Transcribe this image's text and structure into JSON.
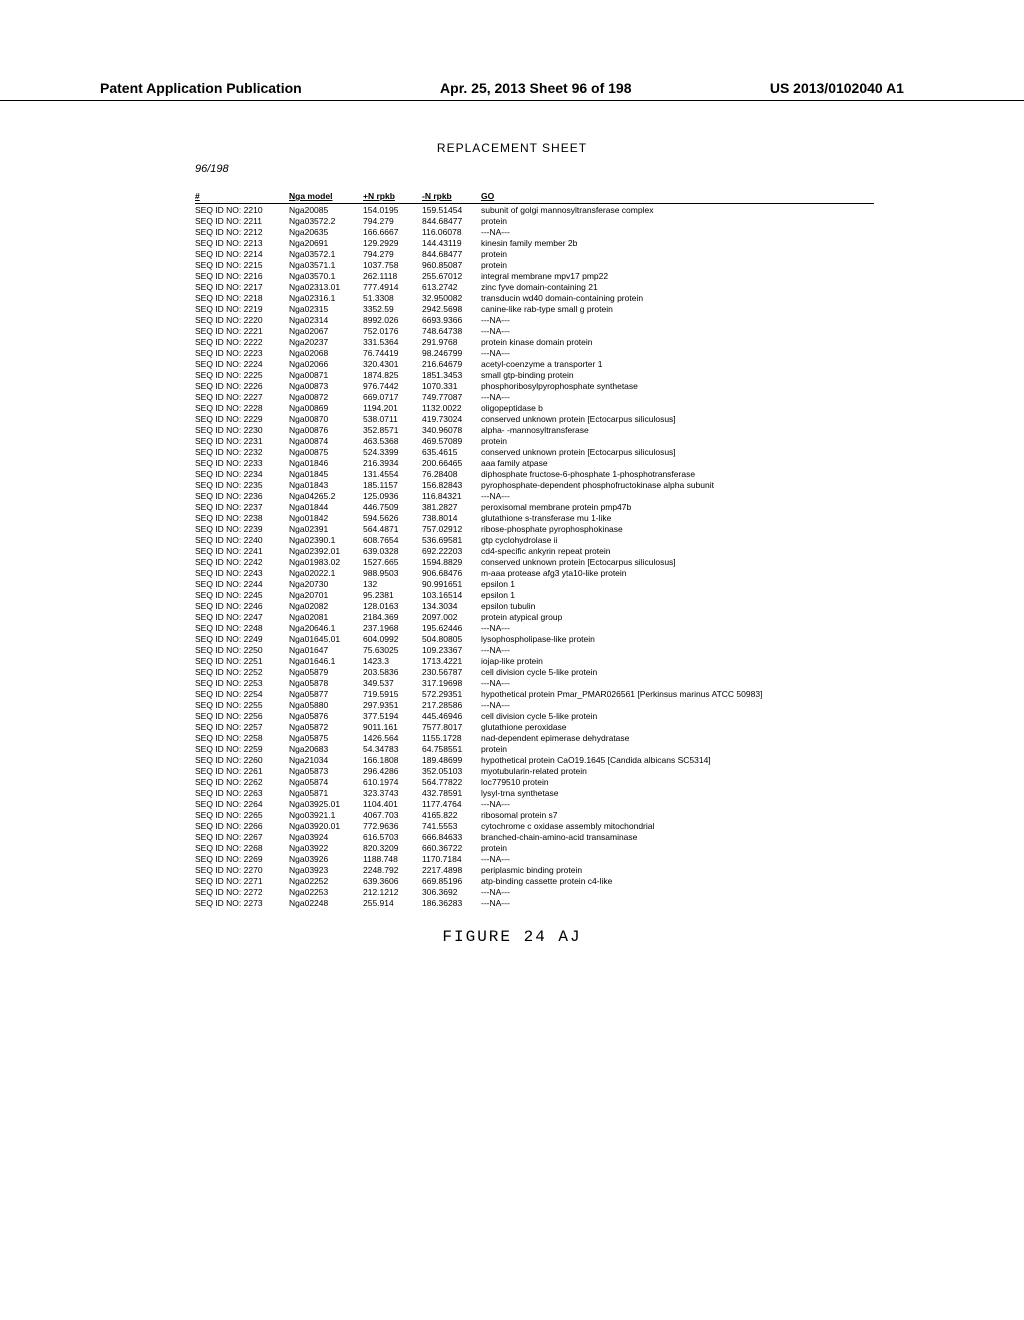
{
  "header": {
    "left": "Patent Application Publication",
    "center": "Apr. 25, 2013  Sheet 96 of 198",
    "right": "US 2013/0102040 A1"
  },
  "replacement_label": "REPLACEMENT SHEET",
  "sheet_num": "96/198",
  "figure_label": "FIGURE 24 AJ",
  "columns": [
    "#",
    "Nga model",
    "+N rpkb",
    "-N rpkb",
    "GO"
  ],
  "rows": [
    [
      "SEQ ID NO: 2210",
      "Nga20085",
      "154.0195",
      "159.51454",
      "subunit of golgi mannosyltransferase complex"
    ],
    [
      "SEQ ID NO: 2211",
      "Nga03572.2",
      "794.279",
      "844.68477",
      "protein"
    ],
    [
      "SEQ ID NO: 2212",
      "Nga20635",
      "166.6667",
      "116.06078",
      "---NA---"
    ],
    [
      "SEQ ID NO: 2213",
      "Nga20691",
      "129.2929",
      "144.43119",
      "kinesin family member 2b"
    ],
    [
      "SEQ ID NO: 2214",
      "Nga03572.1",
      "794.279",
      "844.68477",
      "protein"
    ],
    [
      "SEQ ID NO: 2215",
      "Nga03571.1",
      "1037.758",
      "960.85087",
      "protein"
    ],
    [
      "SEQ ID NO: 2216",
      "Nga03570.1",
      "262.1118",
      "255.67012",
      "integral membrane mpv17 pmp22"
    ],
    [
      "SEQ ID NO: 2217",
      "Nga02313.01",
      "777.4914",
      "613.2742",
      "zinc fyve domain-containing 21"
    ],
    [
      "SEQ ID NO: 2218",
      "Nga02316.1",
      "51.3308",
      "32.950082",
      "transducin wd40 domain-containing protein"
    ],
    [
      "SEQ ID NO: 2219",
      "Nga02315",
      "3352.59",
      "2942.5698",
      "canine-like rab-type small g protein"
    ],
    [
      "SEQ ID NO: 2220",
      "Nga02314",
      "8992.026",
      "6693.9366",
      "---NA---"
    ],
    [
      "SEQ ID NO: 2221",
      "Nga02067",
      "752.0176",
      "748.64738",
      "---NA---"
    ],
    [
      "SEQ ID NO: 2222",
      "Nga20237",
      "331.5364",
      "291.9768",
      "protein kinase domain protein"
    ],
    [
      "SEQ ID NO: 2223",
      "Nga02068",
      "76.74419",
      "98.246799",
      "---NA---"
    ],
    [
      "SEQ ID NO: 2224",
      "Nga02066",
      "320.4301",
      "216.64679",
      "acetyl-coenzyme a transporter 1"
    ],
    [
      "SEQ ID NO: 2225",
      "Nga00871",
      "1874.825",
      "1851.3453",
      "small gtp-binding protein"
    ],
    [
      "SEQ ID NO: 2226",
      "Nga00873",
      "976.7442",
      "1070.331",
      "phosphoribosylpyrophosphate synthetase"
    ],
    [
      "SEQ ID NO: 2227",
      "Nga00872",
      "669.0717",
      "749.77087",
      "---NA---"
    ],
    [
      "SEQ ID NO: 2228",
      "Nga00869",
      "1194.201",
      "1132.0022",
      "oligopeptidase b"
    ],
    [
      "SEQ ID NO: 2229",
      "Nga00870",
      "538.0711",
      "419.73024",
      "conserved unknown protein [Ectocarpus siliculosus]"
    ],
    [
      "SEQ ID NO: 2230",
      "Nga00876",
      "352.8571",
      "340.96078",
      "alpha- -mannosyltransferase"
    ],
    [
      "SEQ ID NO: 2231",
      "Nga00874",
      "463.5368",
      "469.57089",
      "protein"
    ],
    [
      "SEQ ID NO: 2232",
      "Nga00875",
      "524.3399",
      "635.4615",
      "conserved unknown protein [Ectocarpus siliculosus]"
    ],
    [
      "SEQ ID NO: 2233",
      "Nga01846",
      "216.3934",
      "200.66465",
      "aaa family atpase"
    ],
    [
      "SEQ ID NO: 2234",
      "Nga01845",
      "131.4554",
      "76.28408",
      "diphosphate fructose-6-phosphate 1-phosphotransferase"
    ],
    [
      "SEQ ID NO: 2235",
      "Nga01843",
      "185.1157",
      "156.82843",
      "pyrophosphate-dependent phosphofructokinase alpha subunit"
    ],
    [
      "SEQ ID NO: 2236",
      "Nga04265.2",
      "125.0936",
      "116.84321",
      "---NA---"
    ],
    [
      "SEQ ID NO: 2237",
      "Nga01844",
      "446.7509",
      "381.2827",
      "peroxisomal membrane protein pmp47b"
    ],
    [
      "SEQ ID NO: 2238",
      "Ngo01842",
      "594.5626",
      "738.8014",
      "glutathione s-transferase mu 1-like"
    ],
    [
      "SEQ ID NO: 2239",
      "Nga02391",
      "564.4871",
      "757.02912",
      "ribose-phosphate pyrophosphokinase"
    ],
    [
      "SEQ ID NO: 2240",
      "Nga02390.1",
      "608.7654",
      "536.69581",
      "gtp cyclohydrolase ii"
    ],
    [
      "SEQ ID NO: 2241",
      "Nga02392.01",
      "639.0328",
      "692.22203",
      "cd4-specific ankyrin repeat protein"
    ],
    [
      "SEQ ID NO: 2242",
      "Nga01983.02",
      "1527.665",
      "1594.8829",
      "conserved unknown protein [Ectocarpus siliculosus]"
    ],
    [
      "SEQ ID NO: 2243",
      "Nga02022.1",
      "988.9503",
      "906.68476",
      "m-aaa protease afg3 yta10-like protein"
    ],
    [
      "SEQ ID NO: 2244",
      "Nga20730",
      "132",
      "90.991651",
      "epsilon 1"
    ],
    [
      "SEQ ID NO: 2245",
      "Nga20701",
      "95.2381",
      "103.16514",
      "epsilon 1"
    ],
    [
      "SEQ ID NO: 2246",
      "Nga02082",
      "128.0163",
      "134.3034",
      "epsilon tubulin"
    ],
    [
      "SEQ ID NO: 2247",
      "Nga02081",
      "2184.369",
      "2097.002",
      "protein atypical group"
    ],
    [
      "SEQ ID NO: 2248",
      "Nga20646.1",
      "237.1968",
      "195.62446",
      "---NA---"
    ],
    [
      "SEQ ID NO: 2249",
      "Nga01645.01",
      "604.0992",
      "504.80805",
      "lysophospholipase-like protein"
    ],
    [
      "SEQ ID NO: 2250",
      "Nga01647",
      "75.63025",
      "109.23367",
      "---NA---"
    ],
    [
      "SEQ ID NO: 2251",
      "Nga01646.1",
      "1423.3",
      "1713.4221",
      "iojap-like protein"
    ],
    [
      "SEQ ID NO: 2252",
      "Nga05879",
      "203.5836",
      "230.56787",
      "cell division cycle 5-like protein"
    ],
    [
      "SEQ ID NO: 2253",
      "Nga05878",
      "349.537",
      "317.19698",
      "---NA---"
    ],
    [
      "SEQ ID NO: 2254",
      "Nga05877",
      "719.5915",
      "572.29351",
      "hypothetical protein Pmar_PMAR026561 [Perkinsus marinus ATCC 50983]"
    ],
    [
      "SEQ ID NO: 2255",
      "Nga05880",
      "297.9351",
      "217.28586",
      "---NA---"
    ],
    [
      "SEQ ID NO: 2256",
      "Nga05876",
      "377.5194",
      "445.46946",
      "cell division cycle 5-like protein"
    ],
    [
      "SEQ ID NO: 2257",
      "Nga05872",
      "9011.161",
      "7577.8017",
      "glutathione peroxidase"
    ],
    [
      "SEQ ID NO: 2258",
      "Nga05875",
      "1426.564",
      "1155.1728",
      "nad-dependent epimerase dehydratase"
    ],
    [
      "SEQ ID NO: 2259",
      "Nga20683",
      "54.34783",
      "64.758551",
      "protein"
    ],
    [
      "SEQ ID NO: 2260",
      "Nga21034",
      "166.1808",
      "189.48699",
      "hypothetical protein CaO19.1645 [Candida albicans SC5314]"
    ],
    [
      "SEQ ID NO: 2261",
      "Nga05873",
      "296.4286",
      "352.05103",
      "myotubularin-related protein"
    ],
    [
      "SEQ ID NO: 2262",
      "Nga05874",
      "610.1974",
      "564.77822",
      "loc779510 protein"
    ],
    [
      "SEQ ID NO: 2263",
      "Nga05871",
      "323.3743",
      "432.78591",
      "lysyl-trna synthetase"
    ],
    [
      "SEQ ID NO: 2264",
      "Nga03925.01",
      "1104.401",
      "1177.4764",
      "---NA---"
    ],
    [
      "SEQ ID NO: 2265",
      "Ngo03921.1",
      "4067.703",
      "4165.822",
      "ribosomal protein s7"
    ],
    [
      "SEQ ID NO: 2266",
      "Nga03920.01",
      "772.9636",
      "741.5553",
      "cytochrome c oxidase assembly mitochondrial"
    ],
    [
      "SEQ ID NO: 2267",
      "Nga03924",
      "616.5703",
      "666.84633",
      "branched-chain-amino-acid transaminase"
    ],
    [
      "SEQ ID NO: 2268",
      "Nga03922",
      "820.3209",
      "660.36722",
      "protein"
    ],
    [
      "SEQ ID NO: 2269",
      "Nga03926",
      "1188.748",
      "1170.7184",
      "---NA---"
    ],
    [
      "SEQ ID NO: 2270",
      "Nga03923",
      "2248.792",
      "2217.4898",
      "periplasmic binding protein"
    ],
    [
      "SEQ ID NO: 2271",
      "Nga02252",
      "639.3606",
      "669.85196",
      "atp-binding cassette protein c4-like"
    ],
    [
      "SEQ ID NO: 2272",
      "Nga02253",
      "212.1212",
      "306.3692",
      "---NA---"
    ],
    [
      "SEQ ID NO: 2273",
      "Nga02248",
      "255.914",
      "186.36283",
      "---NA---"
    ]
  ]
}
